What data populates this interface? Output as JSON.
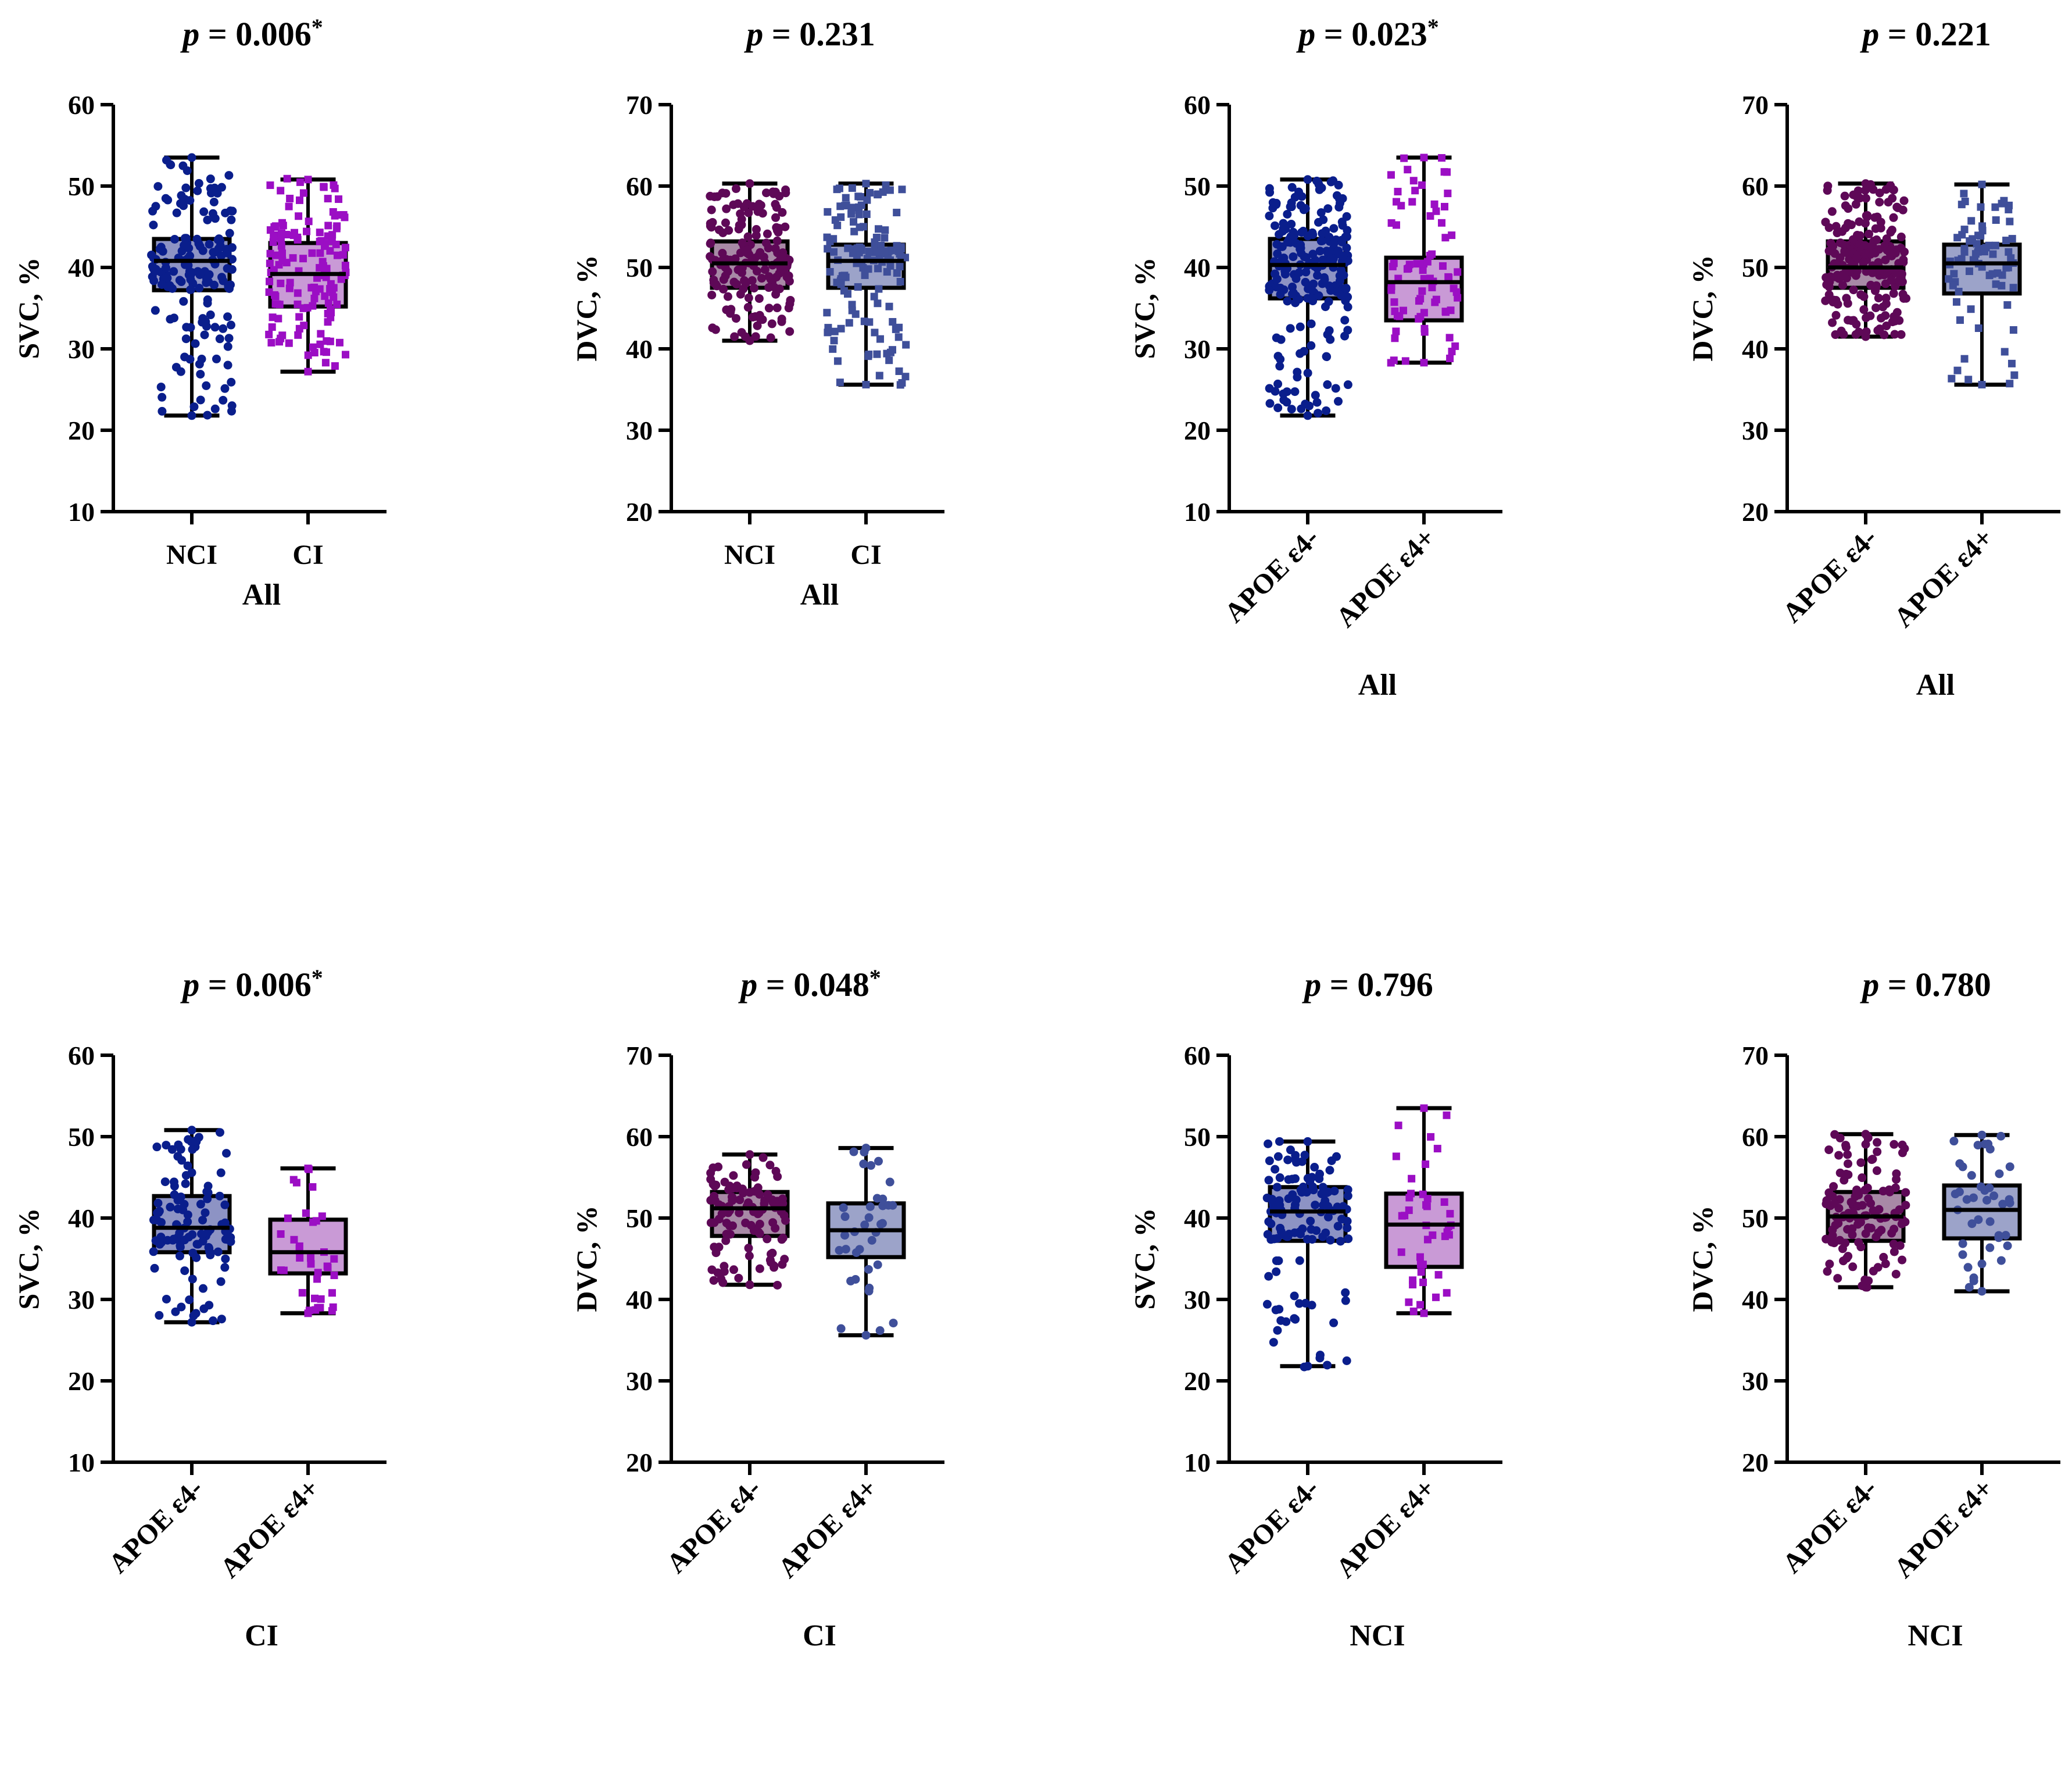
{
  "figure": {
    "palette": {
      "navy": "#0a1e8c",
      "violet": "#9b0ec4",
      "plum": "#5e0857",
      "slate": "#3f4f9a"
    }
  },
  "chart_data": [
    {
      "type": "box",
      "title": "p = 0.006*",
      "title_parts": {
        "italic": "p",
        "value": " = 0.006",
        "sup": "*"
      },
      "ylabel": "SVC, %",
      "ylim": [
        10,
        60
      ],
      "yticks": [
        "10",
        "20",
        "30",
        "40",
        "50",
        "60"
      ],
      "group_label": "All",
      "rotate_labels": false,
      "categories": [
        "NCI",
        "CI"
      ],
      "series": [
        {
          "name": "NCI",
          "min": 21.8,
          "q1": 37.2,
          "median": 40.8,
          "q3": 43.5,
          "max": 53.5,
          "marker": "circle",
          "color": "#0a1e8c",
          "box_fill": "#8d93c4",
          "n": 170
        },
        {
          "name": "CI",
          "min": 27.2,
          "q1": 35.2,
          "median": 39.2,
          "q3": 43.0,
          "max": 50.8,
          "marker": "square",
          "color": "#9b0ec4",
          "box_fill": "#c99ad6",
          "n": 140
        }
      ]
    },
    {
      "type": "box",
      "title": "p = 0.231",
      "title_parts": {
        "italic": "p",
        "value": " = 0.231",
        "sup": ""
      },
      "ylabel": "DVC, %",
      "ylim": [
        20,
        70
      ],
      "yticks": [
        "20",
        "30",
        "40",
        "50",
        "60",
        "70"
      ],
      "group_label": "All",
      "rotate_labels": false,
      "categories": [
        "NCI",
        "CI"
      ],
      "series": [
        {
          "name": "NCI",
          "min": 41.0,
          "q1": 47.5,
          "median": 50.5,
          "q3": 53.2,
          "max": 60.3,
          "marker": "circle",
          "color": "#5e0857",
          "box_fill": "#a889a6",
          "n": 170
        },
        {
          "name": "CI",
          "min": 35.6,
          "q1": 47.5,
          "median": 50.8,
          "q3": 52.8,
          "max": 60.3,
          "marker": "square",
          "color": "#3f4f9a",
          "box_fill": "#9ca3c9",
          "n": 140
        }
      ]
    },
    {
      "type": "box",
      "title": "p = 0.023*",
      "title_parts": {
        "italic": "p",
        "value": " = 0.023",
        "sup": "*"
      },
      "ylabel": "SVC, %",
      "ylim": [
        10,
        60
      ],
      "yticks": [
        "10",
        "20",
        "30",
        "40",
        "50",
        "60"
      ],
      "group_label": "All",
      "rotate_labels": true,
      "categories": [
        "APOE ε4-",
        "APOE ε4+"
      ],
      "series": [
        {
          "name": "APOE ε4-",
          "min": 21.8,
          "q1": 36.2,
          "median": 40.3,
          "q3": 43.5,
          "max": 50.8,
          "marker": "circle",
          "color": "#0a1e8c",
          "box_fill": "#8d93c4",
          "n": 220
        },
        {
          "name": "APOE ε4+",
          "min": 28.3,
          "q1": 33.5,
          "median": 38.2,
          "q3": 41.2,
          "max": 53.5,
          "marker": "square",
          "color": "#9b0ec4",
          "box_fill": "#c99ad6",
          "n": 75
        }
      ]
    },
    {
      "type": "box",
      "title": "p = 0.221",
      "title_parts": {
        "italic": "p",
        "value": " = 0.221",
        "sup": ""
      },
      "ylabel": "DVC, %",
      "ylim": [
        20,
        70
      ],
      "yticks": [
        "20",
        "30",
        "40",
        "50",
        "60",
        "70"
      ],
      "group_label": "All",
      "rotate_labels": true,
      "categories": [
        "APOE ε4-",
        "APOE ε4+"
      ],
      "series": [
        {
          "name": "APOE ε4-",
          "min": 41.5,
          "q1": 47.5,
          "median": 50.0,
          "q3": 53.2,
          "max": 60.3,
          "marker": "circle",
          "color": "#5e0857",
          "box_fill": "#a889a6",
          "n": 220
        },
        {
          "name": "APOE ε4+",
          "min": 35.6,
          "q1": 46.8,
          "median": 50.5,
          "q3": 52.8,
          "max": 60.2,
          "marker": "square",
          "color": "#3f4f9a",
          "box_fill": "#9ca3c9",
          "n": 75
        }
      ]
    },
    {
      "type": "box",
      "title": "p = 0.006*",
      "title_parts": {
        "italic": "p",
        "value": " = 0.006",
        "sup": "*"
      },
      "ylabel": "SVC, %",
      "ylim": [
        10,
        60
      ],
      "yticks": [
        "10",
        "20",
        "30",
        "40",
        "50",
        "60"
      ],
      "group_label": "CI",
      "rotate_labels": true,
      "categories": [
        "APOE ε4-",
        "APOE ε4+"
      ],
      "series": [
        {
          "name": "APOE ε4-",
          "min": 27.2,
          "q1": 35.8,
          "median": 38.8,
          "q3": 42.7,
          "max": 50.8,
          "marker": "circle",
          "color": "#0a1e8c",
          "box_fill": "#8d93c4",
          "n": 110
        },
        {
          "name": "APOE ε4+",
          "min": 28.3,
          "q1": 33.2,
          "median": 35.8,
          "q3": 39.8,
          "max": 46.1,
          "marker": "square",
          "color": "#9b0ec4",
          "box_fill": "#c99ad6",
          "n": 35
        }
      ]
    },
    {
      "type": "box",
      "title": "p = 0.048*",
      "title_parts": {
        "italic": "p",
        "value": " = 0.048",
        "sup": "*"
      },
      "ylabel": "DVC, %",
      "ylim": [
        20,
        70
      ],
      "yticks": [
        "20",
        "30",
        "40",
        "50",
        "60",
        "70"
      ],
      "group_label": "CI",
      "rotate_labels": true,
      "categories": [
        "APOE ε4-",
        "APOE ε4+"
      ],
      "series": [
        {
          "name": "APOE ε4-",
          "min": 41.8,
          "q1": 47.8,
          "median": 51.2,
          "q3": 53.2,
          "max": 57.8,
          "marker": "circle",
          "color": "#5e0857",
          "box_fill": "#a889a6",
          "n": 110
        },
        {
          "name": "APOE ε4+",
          "min": 35.6,
          "q1": 45.2,
          "median": 48.5,
          "q3": 51.8,
          "max": 58.6,
          "marker": "circle",
          "color": "#3f4f9a",
          "box_fill": "#9ca3c9",
          "n": 35
        }
      ]
    },
    {
      "type": "box",
      "title": "p = 0.796",
      "title_parts": {
        "italic": "p",
        "value": " = 0.796",
        "sup": ""
      },
      "ylabel": "SVC, %",
      "ylim": [
        10,
        60
      ],
      "yticks": [
        "10",
        "20",
        "30",
        "40",
        "50",
        "60"
      ],
      "group_label": "NCI",
      "rotate_labels": true,
      "categories": [
        "APOE ε4-",
        "APOE ε4+"
      ],
      "series": [
        {
          "name": "APOE ε4-",
          "min": 21.8,
          "q1": 37.2,
          "median": 40.8,
          "q3": 43.8,
          "max": 49.4,
          "marker": "circle",
          "color": "#0a1e8c",
          "box_fill": "#8d93c4",
          "n": 125
        },
        {
          "name": "APOE ε4+",
          "min": 28.3,
          "q1": 34.0,
          "median": 39.2,
          "q3": 43.0,
          "max": 53.5,
          "marker": "square",
          "color": "#9b0ec4",
          "box_fill": "#c99ad6",
          "n": 40
        }
      ]
    },
    {
      "type": "box",
      "title": "p = 0.780",
      "title_parts": {
        "italic": "p",
        "value": " = 0.780",
        "sup": ""
      },
      "ylabel": "DVC, %",
      "ylim": [
        20,
        70
      ],
      "yticks": [
        "20",
        "30",
        "40",
        "50",
        "60",
        "70"
      ],
      "group_label": "NCI",
      "rotate_labels": true,
      "categories": [
        "APOE ε4-",
        "APOE ε4+"
      ],
      "series": [
        {
          "name": "APOE ε4-",
          "min": 41.5,
          "q1": 47.2,
          "median": 50.2,
          "q3": 53.2,
          "max": 60.3,
          "marker": "circle",
          "color": "#5e0857",
          "box_fill": "#a889a6",
          "n": 125
        },
        {
          "name": "APOE ε4+",
          "min": 41.0,
          "q1": 47.5,
          "median": 51.0,
          "q3": 54.0,
          "max": 60.2,
          "marker": "circle",
          "color": "#3f4f9a",
          "box_fill": "#9ca3c9",
          "n": 40
        }
      ]
    }
  ]
}
